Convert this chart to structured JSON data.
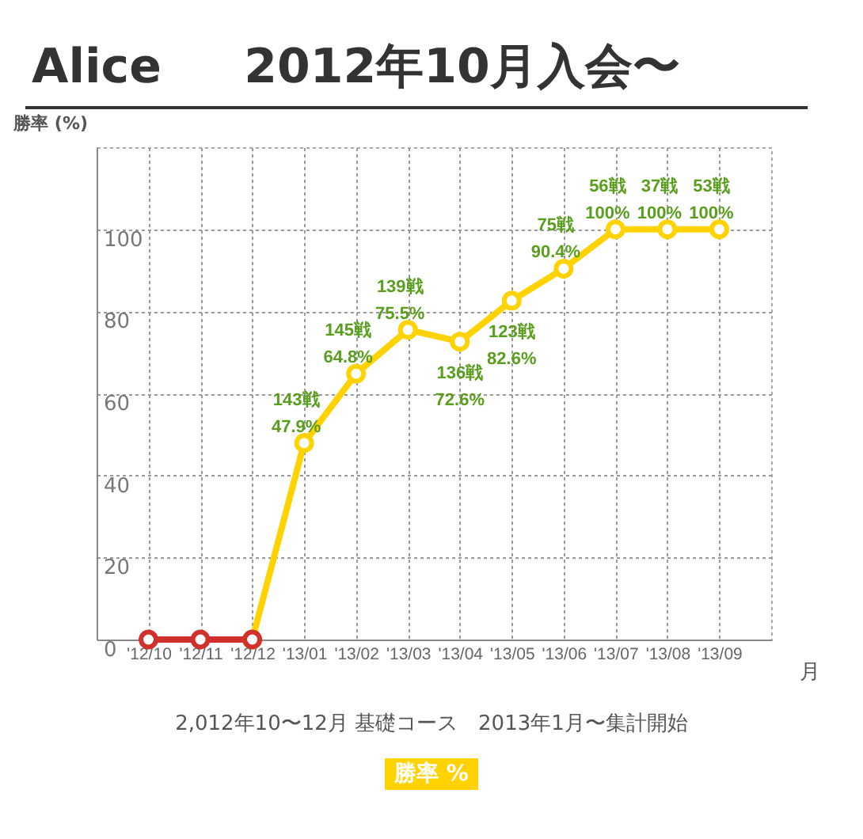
{
  "chart_data": {
    "type": "line",
    "title": "Alice     2012年10月入会〜",
    "ylabel": "勝率 (%)",
    "xlabel": "月",
    "annotations": [
      "2,012年10〜12月 基礎コース　2013年1月〜集計開始"
    ],
    "categories": [
      "'12/10",
      "'12/11",
      "'12/12",
      "'13/01",
      "'13/02",
      "'13/03",
      "'13/04",
      "'13/05",
      "'13/06",
      "'13/07",
      "'13/08",
      "'13/09"
    ],
    "series": [
      {
        "name": "勝率 %",
        "color": "#ffd200",
        "values": [
          null,
          null,
          0,
          47.9,
          64.8,
          75.5,
          72.6,
          82.6,
          90.4,
          100,
          100,
          100
        ],
        "value_labels": [
          null,
          null,
          null,
          "143戦\n47.9%",
          "145戦\n64.8%",
          "139戦\n75.5%",
          "136戦\n72.6%",
          "123戦\n82.6%",
          "75戦\n90.4%",
          "56戦\n100%",
          "37戦\n100%",
          "53戦\n100%"
        ]
      },
      {
        "color": "#d0312d",
        "values": [
          0,
          0,
          0,
          null,
          null,
          null,
          null,
          null,
          null,
          null,
          null,
          null
        ]
      }
    ],
    "ylim": [
      0,
      120
    ],
    "yticks": [
      0,
      20,
      40,
      60,
      80,
      100
    ],
    "grid": true,
    "legend": "bottom",
    "marker": "circle",
    "line_style": "solid"
  }
}
